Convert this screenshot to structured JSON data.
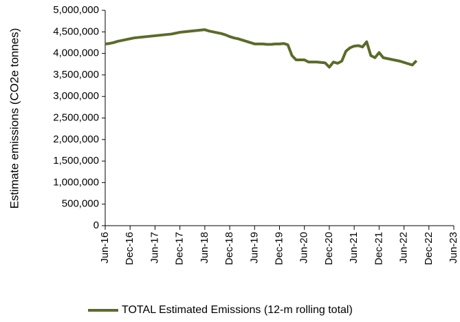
{
  "chart_data": {
    "type": "line",
    "y_label": "Estimate emissions (CO2e tonnes)",
    "categories": [
      "Jun-16",
      null,
      null,
      null,
      null,
      null,
      "Dec-16",
      null,
      null,
      null,
      null,
      null,
      "Jun-17",
      null,
      null,
      null,
      null,
      null,
      "Dec-17",
      null,
      null,
      null,
      null,
      null,
      "Jun-18",
      null,
      null,
      null,
      null,
      null,
      "Dec-18",
      null,
      null,
      null,
      null,
      null,
      "Jun-19",
      null,
      null,
      null,
      null,
      null,
      "Dec-19",
      null,
      null,
      null,
      null,
      null,
      "Jun-20",
      null,
      null,
      null,
      null,
      null,
      "Dec-20",
      null,
      null,
      null,
      null,
      null,
      "Jun-21",
      null,
      null,
      null,
      null,
      null,
      "Dec-21",
      null,
      null,
      null,
      null,
      null,
      "Jun-22",
      null,
      null,
      null,
      null,
      null,
      "Dec-22",
      null,
      null,
      null,
      null,
      null,
      "Jun-23"
    ],
    "series": [
      {
        "name": "TOTAL Estimated Emissions (12-m rolling total)",
        "color": "#5a6b2a",
        "values": [
          4220000,
          4230000,
          4250000,
          4280000,
          4300000,
          4320000,
          4340000,
          4360000,
          4370000,
          4380000,
          4390000,
          4400000,
          4410000,
          4420000,
          4430000,
          4440000,
          4450000,
          4470000,
          4490000,
          4500000,
          4510000,
          4520000,
          4530000,
          4540000,
          4550000,
          4520000,
          4500000,
          4480000,
          4460000,
          4430000,
          4390000,
          4360000,
          4340000,
          4310000,
          4280000,
          4250000,
          4220000,
          4220000,
          4220000,
          4210000,
          4210000,
          4220000,
          4220000,
          4230000,
          4200000,
          3950000,
          3850000,
          3850000,
          3850000,
          3800000,
          3800000,
          3800000,
          3790000,
          3780000,
          3680000,
          3800000,
          3770000,
          3820000,
          4050000,
          4130000,
          4170000,
          4180000,
          4150000,
          4270000,
          3950000,
          3900000,
          4020000,
          3900000,
          3880000,
          3860000,
          3840000,
          3820000,
          3790000,
          3760000,
          3730000,
          3830000,
          null,
          null,
          null,
          null,
          null,
          null,
          null,
          null,
          null
        ]
      }
    ],
    "ylim": [
      0,
      5000000
    ],
    "yticks": [
      0,
      {
        "value": 500000,
        "label": "500,000"
      },
      {
        "value": 1000000,
        "label": "1,000,000"
      },
      {
        "value": 1500000,
        "label": "1,500,000"
      },
      {
        "value": 2000000,
        "label": "2,000,000"
      },
      {
        "value": 2500000,
        "label": "2,500,000"
      },
      {
        "value": 3000000,
        "label": "3,000,000"
      },
      {
        "value": 3500000,
        "label": "3,500,000"
      },
      {
        "value": 4000000,
        "label": "4,000,000"
      },
      {
        "value": 4500000,
        "label": "4,500,000"
      },
      {
        "value": 5000000,
        "label": "5,000,000"
      }
    ],
    "grid": false,
    "legend": "bottom"
  }
}
